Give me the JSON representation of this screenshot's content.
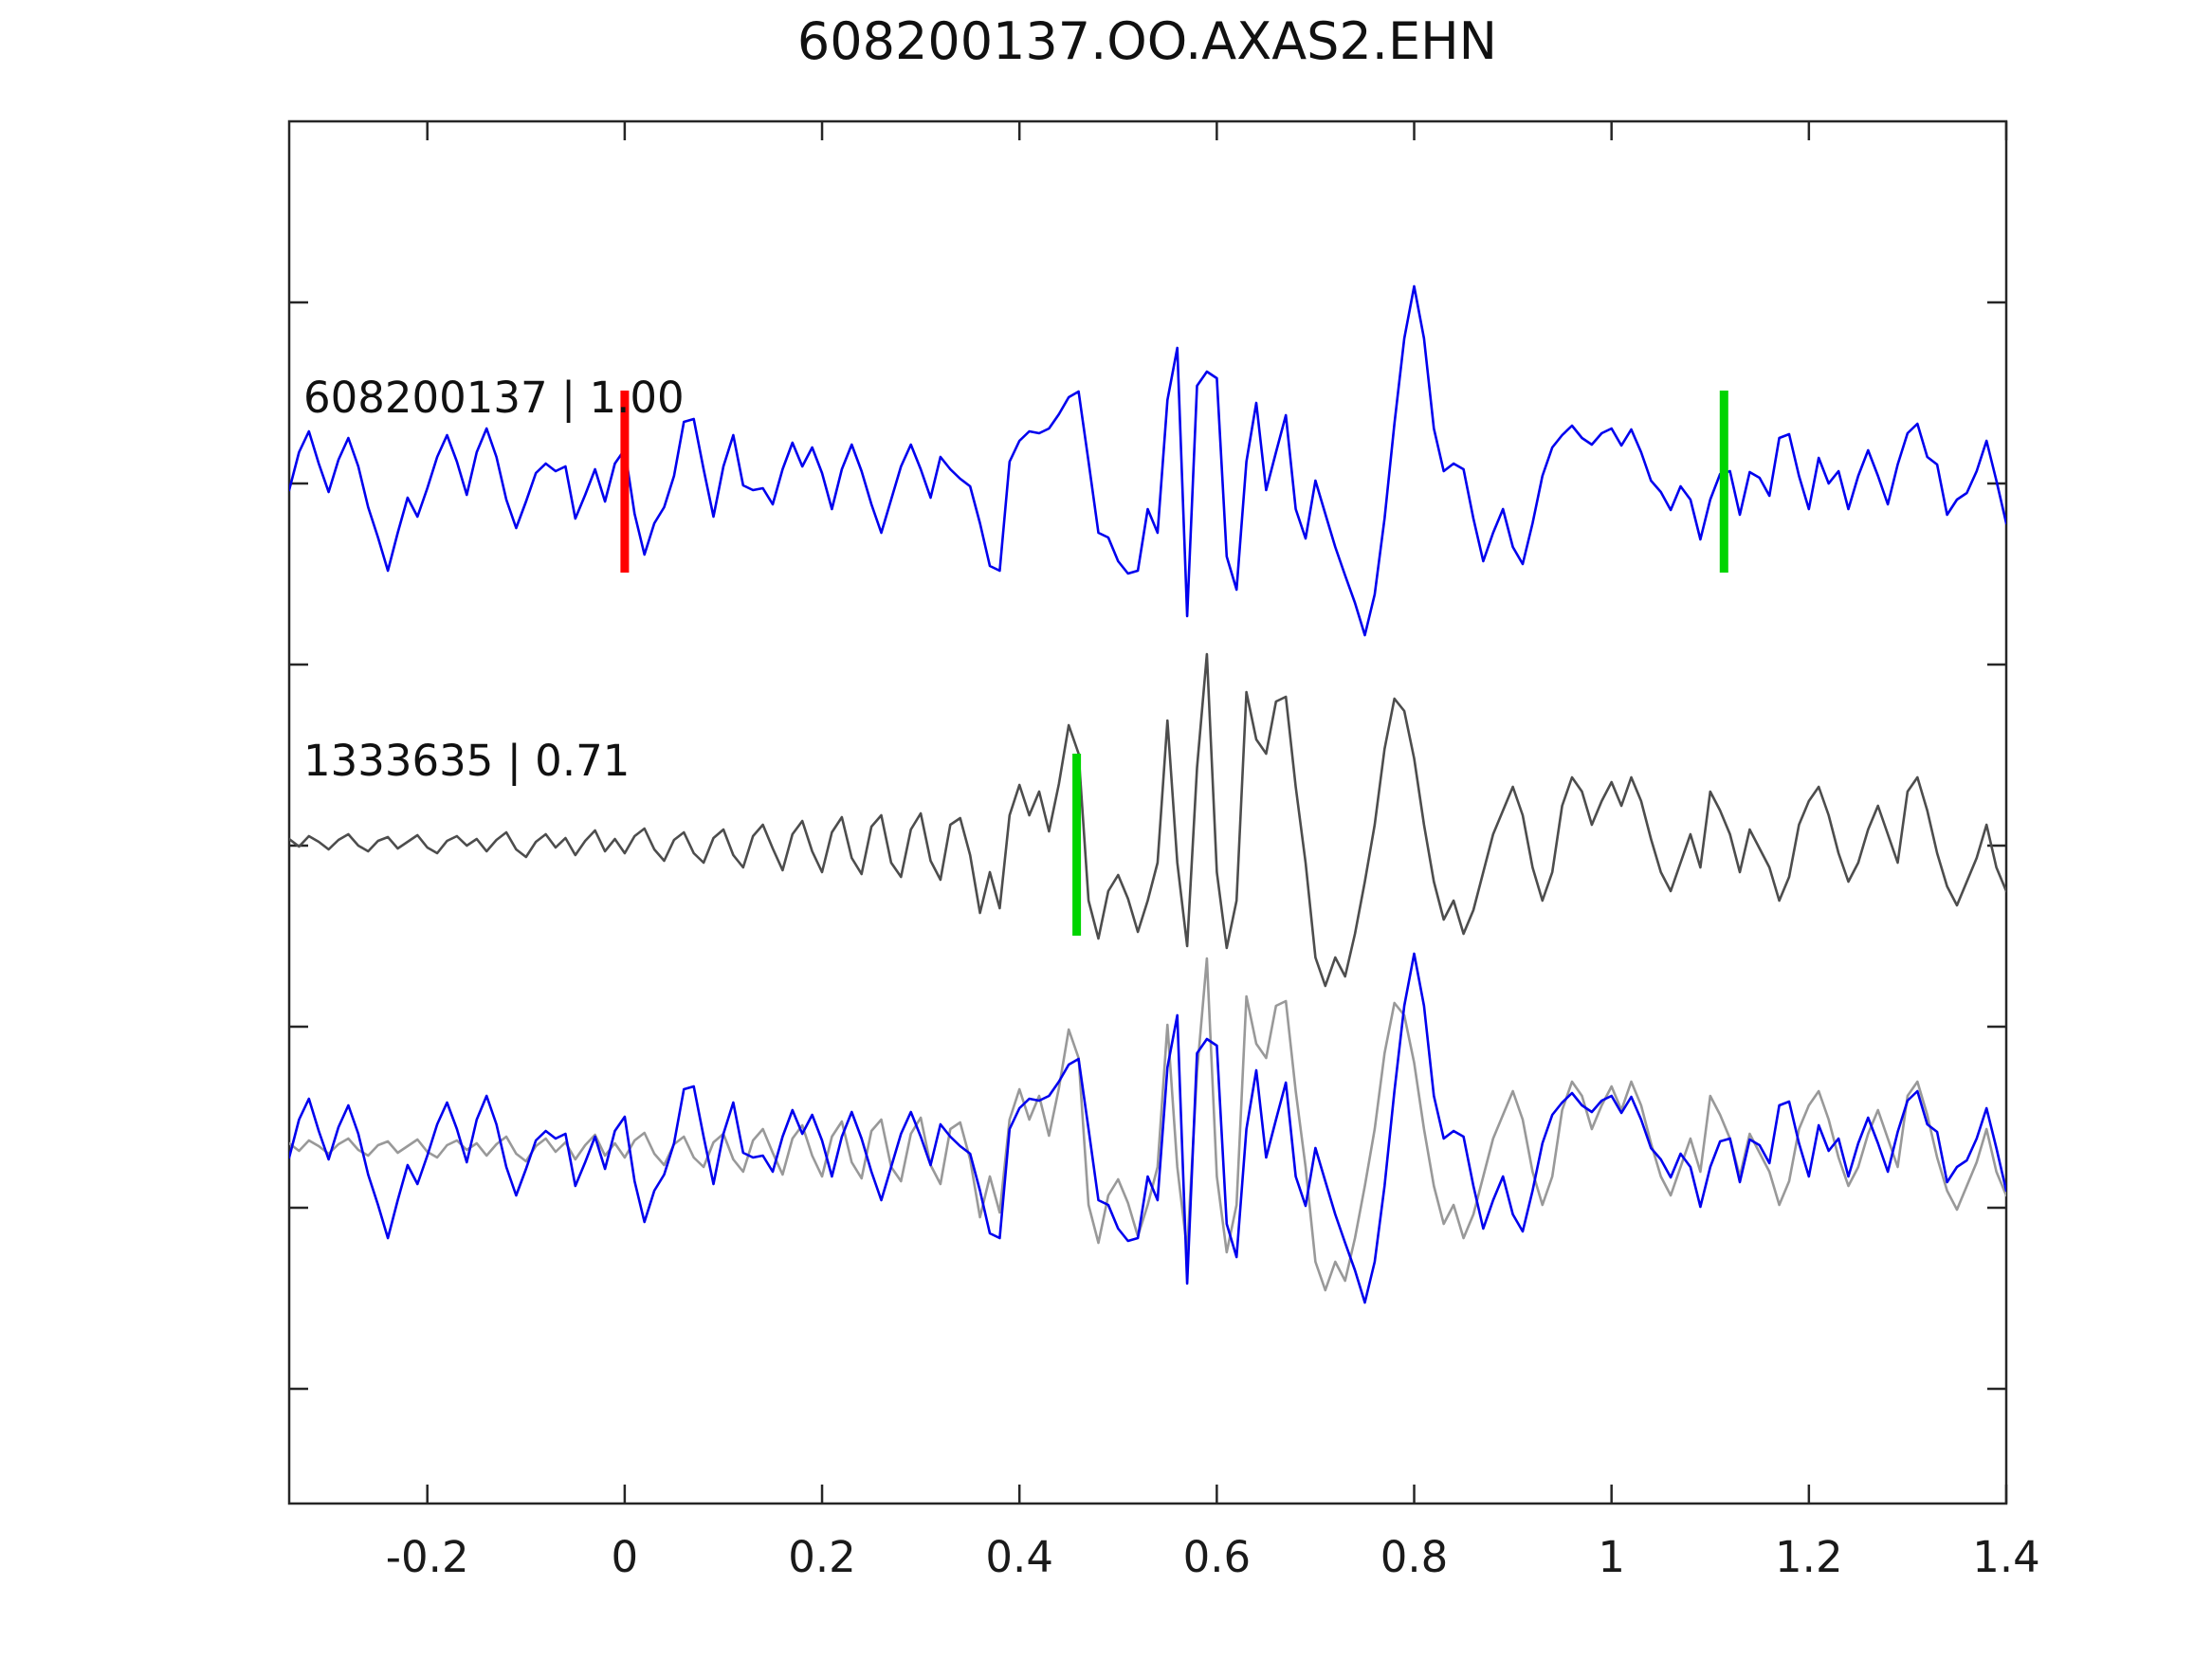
{
  "chart_data": {
    "type": "line",
    "title": "608200137.OO.AXAS2.EHN",
    "xlabel": "",
    "ylabel": "",
    "xlim": [
      -0.34,
      1.4
    ],
    "grid": false,
    "legend": null,
    "xticks": [
      -0.2,
      0,
      0.2,
      0.4,
      0.6,
      0.8,
      1,
      1.2,
      1.4
    ],
    "xtick_labels": [
      "-0.2",
      "0",
      "0.2",
      "0.4",
      "0.6",
      "0.8",
      "1",
      "1.2",
      "1.4"
    ],
    "colors": {
      "template_trace": "#0000ee",
      "detection_trace": "#4d4d4d",
      "overlay_detection_trace": "#999999",
      "p_pick_marker": "#ff0000",
      "s_pick_marker": "#00d400",
      "axis": "#262626",
      "text": "#111111"
    },
    "rows": [
      {
        "name": "template",
        "label": "608200137 | 1.00",
        "event_id": "608200137",
        "correlation": "1.00",
        "series": [
          "template"
        ],
        "series_colors": [
          "#0000ee"
        ],
        "picks": [
          {
            "name": "red-pick",
            "time": 0.0,
            "color": "#ff0000"
          },
          {
            "name": "green-pick",
            "time": 1.114,
            "color": "#00d400"
          }
        ]
      },
      {
        "name": "detection",
        "label": "1333635 | 0.71",
        "event_id": "1333635",
        "correlation": "0.71",
        "series": [
          "detection"
        ],
        "series_colors": [
          "#4d4d4d"
        ],
        "picks": [
          {
            "name": "green-pick",
            "time": 0.458,
            "color": "#00d400"
          }
        ]
      },
      {
        "name": "overlay",
        "label": "",
        "series": [
          "detection",
          "template"
        ],
        "series_colors": [
          "#999999",
          "#0000ee"
        ],
        "picks": []
      }
    ],
    "sampling": {
      "t0": -0.34,
      "dt": 0.01,
      "n": 175
    },
    "amplitude_units": "relative (plot px)",
    "series": [
      {
        "name": "template",
        "y": [
          -10,
          30,
          52,
          18,
          -12,
          22,
          45,
          15,
          -28,
          -60,
          -95,
          -55,
          -18,
          -38,
          -8,
          25,
          48,
          20,
          -15,
          30,
          55,
          25,
          -20,
          -50,
          -22,
          8,
          18,
          10,
          15,
          -40,
          -15,
          12,
          -22,
          18,
          33,
          -35,
          -78,
          -45,
          -28,
          5,
          62,
          65,
          12,
          -38,
          15,
          48,
          -5,
          -10,
          -8,
          -25,
          12,
          40,
          15,
          35,
          8,
          -30,
          12,
          38,
          10,
          -25,
          -55,
          -20,
          15,
          38,
          12,
          -18,
          25,
          12,
          2,
          -6,
          -45,
          -90,
          -95,
          20,
          42,
          52,
          50,
          55,
          70,
          88,
          94,
          20,
          -55,
          -60,
          -85,
          -98,
          -95,
          -30,
          -55,
          85,
          140,
          -143,
          100,
          115,
          108,
          -80,
          -115,
          20,
          82,
          -10,
          30,
          69,
          -30,
          -61,
          0,
          -35,
          -70,
          -100,
          -129,
          -163,
          -120,
          -40,
          60,
          150,
          205,
          150,
          55,
          10,
          18,
          12,
          -40,
          -85,
          -55,
          -30,
          -70,
          -88,
          -45,
          5,
          35,
          48,
          58,
          45,
          38,
          50,
          55,
          37,
          54,
          30,
          0,
          -12,
          -31,
          -6,
          -20,
          -62,
          -20,
          7,
          10,
          -36,
          9,
          3,
          -16,
          45,
          49,
          5,
          -30,
          24,
          -3,
          10,
          -30,
          5,
          32,
          5,
          -25,
          17,
          50,
          60,
          25,
          17,
          -36,
          -20,
          -13,
          10,
          42,
          0,
          -45
        ]
      },
      {
        "name": "detection",
        "y": [
          5,
          -3,
          8,
          2,
          -6,
          4,
          10,
          -2,
          -8,
          3,
          7,
          -5,
          2,
          9,
          -4,
          -10,
          3,
          8,
          -2,
          5,
          -8,
          4,
          12,
          -6,
          -14,
          2,
          10,
          -4,
          6,
          -12,
          3,
          14,
          -8,
          5,
          -10,
          8,
          16,
          -6,
          -18,
          4,
          12,
          -10,
          -20,
          6,
          15,
          -12,
          -25,
          8,
          20,
          -5,
          -28,
          10,
          24,
          -8,
          -30,
          12,
          28,
          -15,
          -32,
          18,
          30,
          -20,
          -35,
          15,
          32,
          -18,
          -38,
          20,
          27,
          -12,
          -73,
          -30,
          -68,
          30,
          62,
          30,
          55,
          13,
          63,
          125,
          95,
          -60,
          -100,
          -50,
          -33,
          -58,
          -93,
          -60,
          -20,
          130,
          -20,
          -108,
          80,
          200,
          -30,
          -110,
          -60,
          160,
          110,
          95,
          150,
          155,
          60,
          -20,
          -120,
          -150,
          -120,
          -140,
          -95,
          -40,
          20,
          100,
          153,
          140,
          90,
          20,
          -40,
          -80,
          -60,
          -95,
          -70,
          -30,
          10,
          35,
          60,
          30,
          -25,
          -60,
          -30,
          40,
          70,
          55,
          20,
          45,
          65,
          40,
          70,
          45,
          5,
          -30,
          -50,
          -20,
          10,
          -25,
          55,
          35,
          10,
          -30,
          15,
          -5,
          -25,
          -60,
          -35,
          20,
          45,
          60,
          30,
          -10,
          -40,
          -20,
          15,
          40,
          10,
          -20,
          55,
          70,
          35,
          -10,
          -45,
          -65,
          -40,
          -15,
          20,
          -25,
          -50
        ]
      }
    ]
  }
}
